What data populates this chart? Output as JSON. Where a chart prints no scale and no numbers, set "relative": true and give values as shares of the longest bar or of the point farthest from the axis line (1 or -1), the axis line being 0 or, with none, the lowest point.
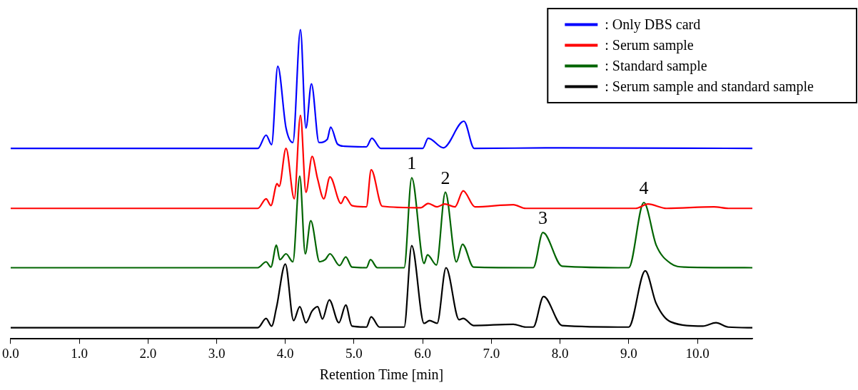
{
  "chart_data": {
    "type": "line",
    "xlabel": "Retention Time [min]",
    "relative": true,
    "legend": "top right",
    "marker": "none",
    "line_style": "solid",
    "grid": false,
    "xlim": [
      0,
      10.8
    ],
    "xticks": [
      {
        "value": 0,
        "label": "0.0"
      },
      {
        "value": 1,
        "label": "1.0"
      },
      {
        "value": 2,
        "label": "2.0"
      },
      {
        "value": 3,
        "label": "3.0"
      },
      {
        "value": 4,
        "label": "4.0"
      },
      {
        "value": 5,
        "label": "5.0"
      },
      {
        "value": 6,
        "label": "6.0"
      },
      {
        "value": 7,
        "label": "7.0"
      },
      {
        "value": 8,
        "label": "8.0"
      },
      {
        "value": 9,
        "label": "9.0"
      },
      {
        "value": 10,
        "label": "10.0"
      }
    ],
    "annotations": [
      {
        "text": "1",
        "x": 5.84,
        "y": 0.521
      },
      {
        "text": "2",
        "x": 6.33,
        "y": 0.474
      },
      {
        "text": "3",
        "x": 7.75,
        "y": 0.344
      },
      {
        "text": "4",
        "x": 9.22,
        "y": 0.441
      }
    ],
    "series": [
      {
        "name": ": Only DBS card",
        "color": "#0000ff",
        "x": [
          0,
          3.6,
          3.72,
          3.8,
          3.89,
          4.01,
          4.11,
          4.22,
          4.3,
          4.38,
          4.49,
          4.61,
          4.66,
          4.76,
          4.86,
          5.18,
          5.26,
          5.39,
          6.0,
          6.08,
          6.3,
          6.6,
          6.75,
          8.0,
          10.8
        ],
        "values": [
          0.616,
          0.616,
          0.659,
          0.628,
          0.882,
          0.682,
          0.635,
          1.0,
          0.682,
          0.825,
          0.635,
          0.645,
          0.685,
          0.63,
          0.623,
          0.621,
          0.649,
          0.616,
          0.616,
          0.649,
          0.618,
          0.704,
          0.616,
          0.618,
          0.616
        ]
      },
      {
        "name": ": Serum sample",
        "color": "#ff0000",
        "x": [
          0,
          3.6,
          3.72,
          3.79,
          3.88,
          3.91,
          4.01,
          4.13,
          4.22,
          4.3,
          4.39,
          4.47,
          4.56,
          4.65,
          4.81,
          4.87,
          4.97,
          5.18,
          5.25,
          5.41,
          5.97,
          6.08,
          6.21,
          6.32,
          6.47,
          6.59,
          6.76,
          7.32,
          7.5,
          9.1,
          9.28,
          9.55,
          10.24,
          10.45,
          10.8
        ],
        "values": [
          0.422,
          0.422,
          0.453,
          0.431,
          0.502,
          0.493,
          0.616,
          0.453,
          0.723,
          0.474,
          0.59,
          0.517,
          0.453,
          0.524,
          0.438,
          0.46,
          0.431,
          0.427,
          0.547,
          0.429,
          0.424,
          0.438,
          0.427,
          0.436,
          0.427,
          0.479,
          0.427,
          0.434,
          0.422,
          0.422,
          0.436,
          0.422,
          0.427,
          0.422,
          0.422
        ]
      },
      {
        "name": ": Standard sample",
        "color": "#006400",
        "x": [
          0,
          3.6,
          3.72,
          3.79,
          3.87,
          3.92,
          4.01,
          4.11,
          4.21,
          4.29,
          4.37,
          4.5,
          4.58,
          4.65,
          4.79,
          4.88,
          4.97,
          5.18,
          5.24,
          5.34,
          5.73,
          5.84,
          6.02,
          6.07,
          6.2,
          6.33,
          6.49,
          6.58,
          6.74,
          7.61,
          7.75,
          8.03,
          9.0,
          9.22,
          9.4,
          9.61,
          9.82,
          10.8
        ],
        "values": [
          0.23,
          0.23,
          0.249,
          0.232,
          0.303,
          0.256,
          0.275,
          0.249,
          0.526,
          0.275,
          0.382,
          0.249,
          0.256,
          0.275,
          0.237,
          0.265,
          0.232,
          0.23,
          0.256,
          0.23,
          0.23,
          0.521,
          0.244,
          0.272,
          0.239,
          0.474,
          0.249,
          0.306,
          0.232,
          0.23,
          0.344,
          0.235,
          0.23,
          0.441,
          0.303,
          0.244,
          0.232,
          0.23
        ]
      },
      {
        "name": ": Serum sample and standard sample",
        "color": "#000000",
        "x": [
          0,
          3.6,
          3.72,
          3.8,
          3.87,
          4.0,
          4.12,
          4.21,
          4.3,
          4.39,
          4.47,
          4.54,
          4.64,
          4.78,
          4.88,
          4.97,
          5.18,
          5.25,
          5.37,
          5.73,
          5.84,
          6.02,
          6.1,
          6.21,
          6.34,
          6.53,
          6.59,
          6.74,
          7.32,
          7.5,
          7.61,
          7.76,
          8.03,
          9.0,
          9.24,
          9.4,
          9.61,
          10.08,
          10.27,
          10.45,
          10.8
        ],
        "values": [
          0.036,
          0.036,
          0.066,
          0.041,
          0.1,
          0.242,
          0.059,
          0.104,
          0.052,
          0.09,
          0.104,
          0.064,
          0.126,
          0.052,
          0.109,
          0.041,
          0.038,
          0.071,
          0.038,
          0.038,
          0.301,
          0.05,
          0.059,
          0.05,
          0.23,
          0.062,
          0.066,
          0.043,
          0.047,
          0.038,
          0.038,
          0.137,
          0.043,
          0.038,
          0.22,
          0.114,
          0.055,
          0.041,
          0.052,
          0.038,
          0.036
        ]
      }
    ]
  }
}
